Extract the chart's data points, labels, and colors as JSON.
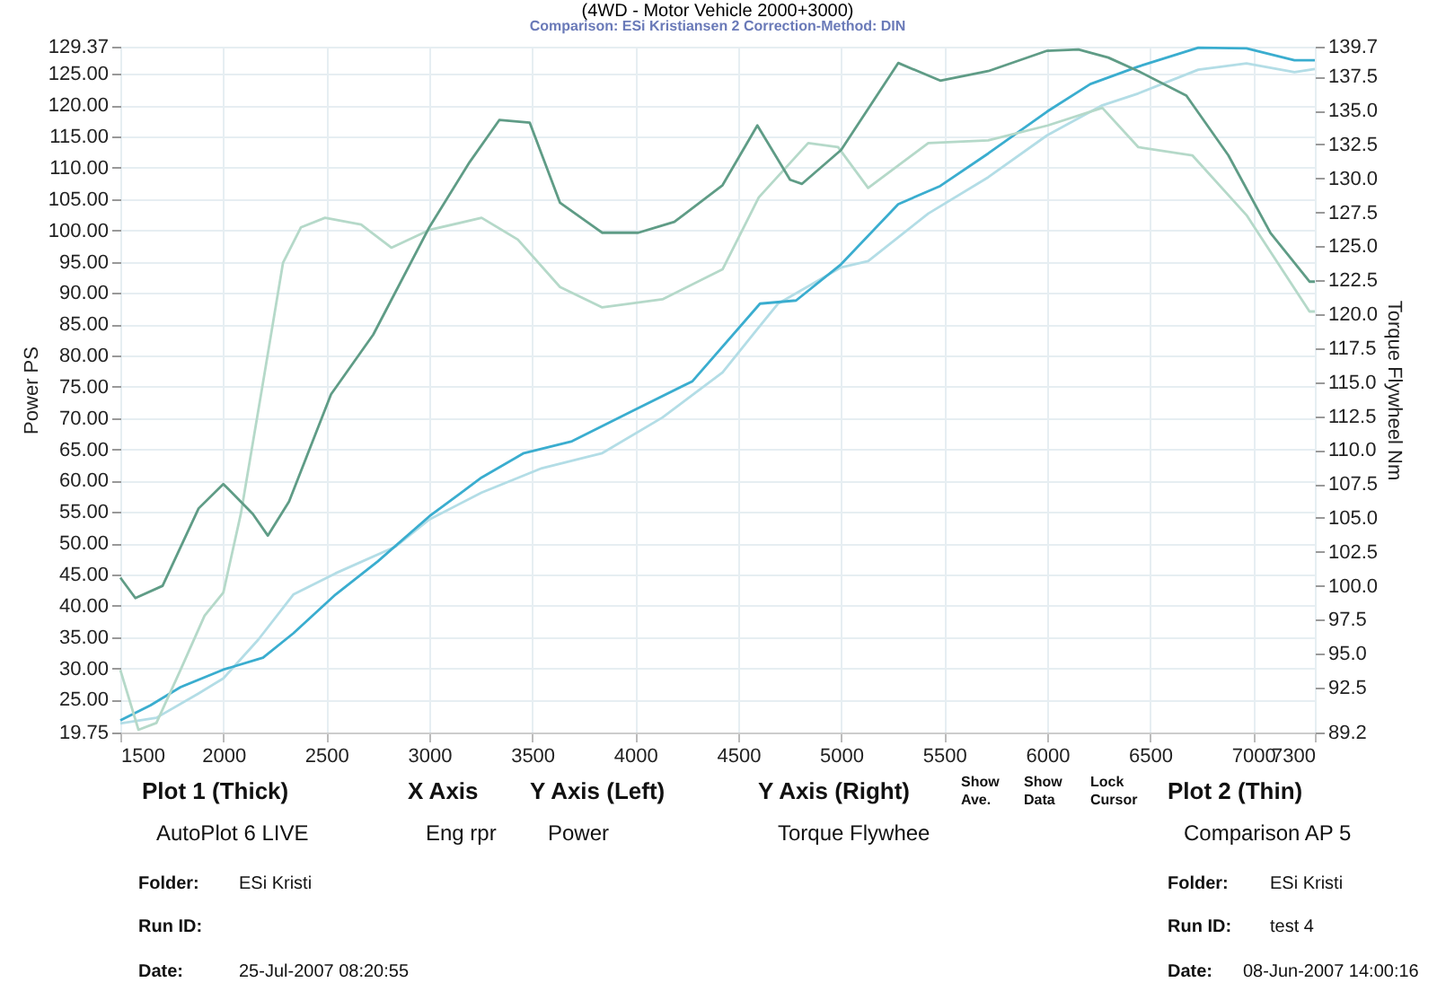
{
  "chart_data": {
    "type": "line",
    "title": "(4WD - Motor Vehicle 2000+3000)",
    "subtitle": "Comparison: ESi Kristiansen 2      Correction-Method: DIN",
    "ylabel": "Power PS",
    "y2label": "Torque Flywheel Nm",
    "xlim": [
      1500,
      7300
    ],
    "xticks": [
      1500,
      2000,
      2500,
      3000,
      3500,
      4000,
      4500,
      5000,
      5500,
      6000,
      6500,
      7000,
      7300
    ],
    "ylim": [
      19.75,
      129.37
    ],
    "yticks": [
      19.75,
      {
        "value": 25,
        "label": "25.00"
      },
      {
        "value": 30,
        "label": "30.00"
      },
      {
        "value": 35,
        "label": "35.00"
      },
      {
        "value": 40,
        "label": "40.00"
      },
      {
        "value": 45,
        "label": "45.00"
      },
      {
        "value": 50,
        "label": "50.00"
      },
      {
        "value": 55,
        "label": "55.00"
      },
      {
        "value": 60,
        "label": "60.00"
      },
      {
        "value": 65,
        "label": "65.00"
      },
      {
        "value": 70,
        "label": "70.00"
      },
      {
        "value": 75,
        "label": "75.00"
      },
      {
        "value": 80,
        "label": "80.00"
      },
      {
        "value": 85,
        "label": "85.00"
      },
      {
        "value": 90,
        "label": "90.00"
      },
      {
        "value": 95,
        "label": "95.00"
      },
      {
        "value": 100,
        "label": "100.00"
      },
      {
        "value": 105,
        "label": "105.00"
      },
      {
        "value": 110,
        "label": "110.00"
      },
      {
        "value": 115,
        "label": "115.00"
      },
      {
        "value": 120,
        "label": "120.00"
      },
      {
        "value": 125,
        "label": "125.00"
      },
      129.37
    ],
    "y2lim": [
      89.2,
      139.7
    ],
    "y2ticks": [
      89.2,
      92.5,
      {
        "value": 95,
        "label": "95.0"
      },
      97.5,
      {
        "value": 100,
        "label": "100.0"
      },
      102.5,
      {
        "value": 105,
        "label": "105.0"
      },
      107.5,
      {
        "value": 110,
        "label": "110.0"
      },
      112.5,
      {
        "value": 115,
        "label": "115.0"
      },
      117.5,
      {
        "value": 120,
        "label": "120.0"
      },
      122.5,
      {
        "value": 125,
        "label": "125.0"
      },
      127.5,
      {
        "value": 130,
        "label": "130.0"
      },
      132.5,
      {
        "value": 135,
        "label": "135.0"
      },
      137.5,
      139.7
    ],
    "grid": true,
    "legend": false,
    "marker": "none",
    "line_style": "solid",
    "series": [
      {
        "color": "#b5d9c9",
        "axis": "y2",
        "x": [
          1500,
          1588,
          1675,
          1792,
          1909,
          2000,
          2085,
          2202,
          2290,
          2377,
          2494,
          2669,
          2816,
          3000,
          3254,
          3430,
          3635,
          3840,
          4132,
          4424,
          4600,
          4840,
          4985,
          5131,
          5423,
          5714,
          6003,
          6268,
          6443,
          6705,
          6968,
          7274,
          7300
        ],
        "values": [
          93.8,
          89.4,
          89.9,
          93.8,
          97.8,
          99.5,
          105.3,
          115.8,
          123.8,
          126.4,
          127.1,
          126.6,
          124.9,
          126.2,
          127.1,
          125.5,
          122.0,
          120.5,
          121.1,
          123.3,
          128.6,
          132.6,
          132.3,
          129.3,
          132.6,
          132.8,
          133.9,
          135.2,
          132.3,
          131.7,
          127.3,
          120.2,
          120.2
        ]
      },
      {
        "color": "#b3dde6",
        "x": [
          1500,
          1675,
          1880,
          2000,
          2170,
          2340,
          2545,
          2838,
          3000,
          3254,
          3547,
          3840,
          4132,
          4424,
          4600,
          4694,
          5000,
          5131,
          5423,
          5714,
          6000,
          6268,
          6443,
          6734,
          6968,
          7201,
          7300
        ],
        "values": [
          21.2,
          22.1,
          26.0,
          28.4,
          34.6,
          41.8,
          45.2,
          49.5,
          53.8,
          58.1,
          62.0,
          64.4,
          70.1,
          77.3,
          84.5,
          88.3,
          94.1,
          95.1,
          102.7,
          108.5,
          115.2,
          120.0,
          121.9,
          125.7,
          126.7,
          125.3,
          125.8
        ]
      },
      {
        "color": "#5f9c86",
        "axis": "y2",
        "x": [
          1500,
          1573,
          1705,
          1880,
          2000,
          2143,
          2216,
          2319,
          2523,
          2728,
          3000,
          3196,
          3340,
          3488,
          3635,
          3840,
          4015,
          4190,
          4424,
          4593,
          4752,
          4810,
          5000,
          5277,
          5481,
          5714,
          6000,
          6152,
          6297,
          6443,
          6676,
          6880,
          7084,
          7274,
          7300
        ],
        "values": [
          100.6,
          99.1,
          100.0,
          105.7,
          107.5,
          105.3,
          103.7,
          106.2,
          114.1,
          118.5,
          126.4,
          131.2,
          134.3,
          134.1,
          128.2,
          126.0,
          126.0,
          126.8,
          129.5,
          133.9,
          129.9,
          129.6,
          132.1,
          138.5,
          137.2,
          137.9,
          139.4,
          139.5,
          138.9,
          137.9,
          136.1,
          131.7,
          126.0,
          122.4,
          122.4
        ]
      },
      {
        "color": "#3aadcf",
        "x": [
          1500,
          1646,
          1792,
          2000,
          2193,
          2340,
          2545,
          2750,
          3000,
          3254,
          3459,
          3693,
          3985,
          4278,
          4606,
          4781,
          5000,
          5277,
          5481,
          5714,
          6000,
          6210,
          6443,
          6734,
          6968,
          7201,
          7300
        ],
        "values": [
          21.7,
          24.1,
          27.0,
          29.8,
          31.7,
          35.6,
          41.8,
          47.1,
          54.3,
          60.5,
          64.4,
          66.3,
          71.1,
          75.9,
          88.3,
          88.8,
          94.6,
          104.2,
          107.1,
          112.3,
          119.0,
          123.4,
          126.2,
          129.2,
          129.1,
          127.2,
          127.2
        ]
      }
    ],
    "annotations": [
      "Plot 1 (Thick)",
      "X Axis",
      "Y Axis (Left)",
      "Y Axis (Right)",
      "Show Ave.",
      "Show Data",
      "Lock Cursor",
      "Plot 2 (Thin)",
      "AutoPlot 6 LIVE",
      "Eng rpr",
      "Power",
      "Torque Flywhee",
      "Comparison AP 5",
      "Folder:",
      "ESi Kristi",
      "Run ID:",
      "Date:",
      "25-Jul-2007  08:20:55",
      "Folder:",
      "ESi Kristi",
      "Run ID:",
      "test 4",
      "Date:",
      "08-Jun-2007  14:00:16"
    ]
  }
}
